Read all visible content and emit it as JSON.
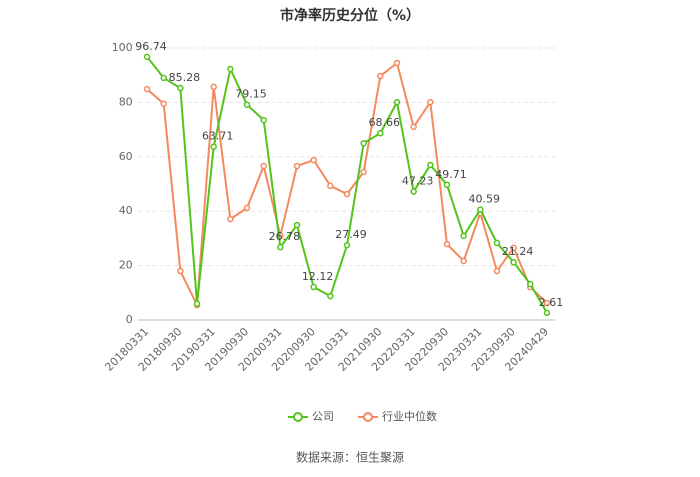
{
  "chart_data": {
    "type": "line",
    "title": "市净率历史分位（%）",
    "source": "数据来源：恒生聚源",
    "categories": [
      "20180331",
      null,
      "20180930",
      null,
      "20190331",
      null,
      "20190930",
      null,
      "20200331",
      null,
      "20200930",
      null,
      "20210331",
      null,
      "20210930",
      null,
      "20220331",
      null,
      "20220930",
      null,
      "20230331",
      null,
      "20230930",
      null,
      "20240429"
    ],
    "series": [
      {
        "name": "公司",
        "color": "#52c41a",
        "data_label_step": 2,
        "values": [
          96.74,
          89,
          85.28,
          6,
          63.71,
          92.3,
          79.15,
          73.5,
          26.78,
          34.9,
          12.12,
          8.8,
          27.49,
          65,
          68.66,
          80.1,
          47.23,
          57,
          49.71,
          30.9,
          40.59,
          28.3,
          21.24,
          13.2,
          2.61
        ]
      },
      {
        "name": "行业中位数",
        "color": "#f4895f",
        "values": [
          84.9,
          79.5,
          18,
          5.5,
          85.7,
          37.1,
          41.2,
          56.6,
          31,
          56.6,
          58.8,
          49.3,
          46.3,
          54.4,
          89.7,
          94.5,
          71,
          80.1,
          27.9,
          21.7,
          39.3,
          18,
          26.5,
          12.1,
          6.2
        ]
      }
    ],
    "ylim": [
      0,
      100
    ],
    "yticks": [
      0,
      20,
      40,
      60,
      80,
      100
    ],
    "grid": true
  }
}
